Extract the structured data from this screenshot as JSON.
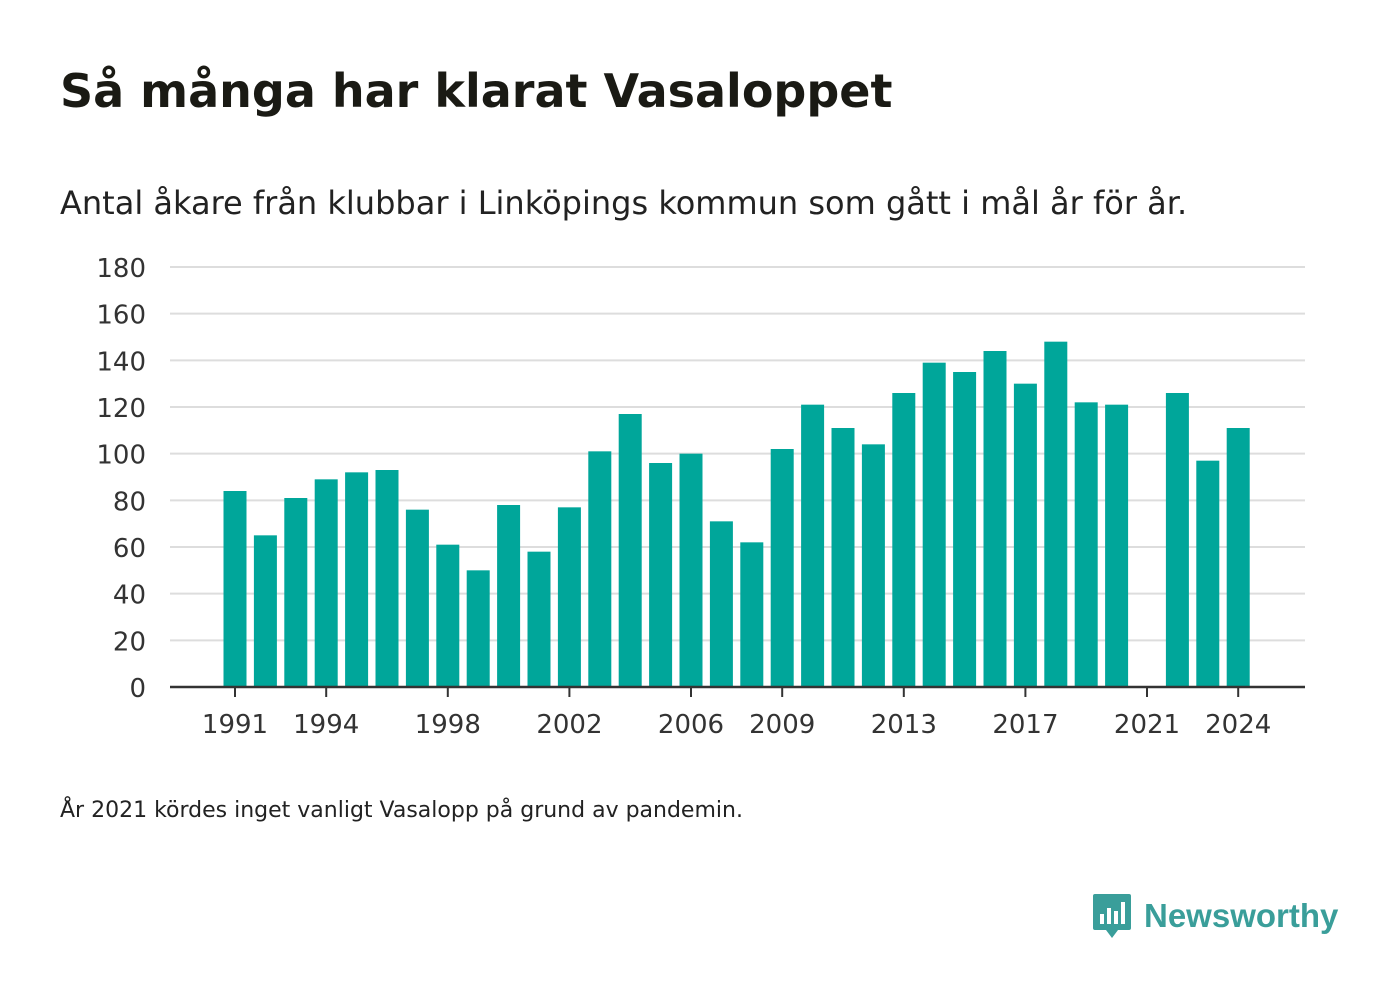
{
  "header": {
    "title": "Så många har klarat Vasaloppet",
    "subtitle": "Antal åkare från klubbar i Linköpings kommun som gått i mål år för år."
  },
  "footer": {
    "note": "År 2021 kördes inget vanligt Vasalopp på grund av pandemin.",
    "brand": "Newsworthy",
    "brand_icon": "bar-chart-speech-bubble-icon"
  },
  "colors": {
    "bar": "#00a69a",
    "grid": "#dddddd",
    "axis": "#333333",
    "brand": "#3a9e9a"
  },
  "chart_data": {
    "type": "bar",
    "title": "Så många har klarat Vasaloppet",
    "subtitle": "Antal åkare från klubbar i Linköpings kommun som gått i mål år för år.",
    "xlabel": "",
    "ylabel": "",
    "categories": [
      1991,
      1992,
      1993,
      1994,
      1995,
      1996,
      1997,
      1998,
      1999,
      2000,
      2001,
      2002,
      2003,
      2004,
      2005,
      2006,
      2007,
      2008,
      2009,
      2010,
      2011,
      2012,
      2013,
      2014,
      2015,
      2016,
      2017,
      2018,
      2019,
      2020,
      2021,
      2022,
      2023,
      2024
    ],
    "values": [
      84,
      65,
      81,
      89,
      92,
      93,
      76,
      61,
      50,
      78,
      58,
      77,
      101,
      117,
      96,
      100,
      71,
      62,
      102,
      121,
      111,
      104,
      126,
      139,
      135,
      144,
      130,
      148,
      122,
      121,
      null,
      126,
      97,
      111
    ],
    "x_tick_labels": [
      "1991",
      "1994",
      "1998",
      "2002",
      "2006",
      "2009",
      "2013",
      "2017",
      "2021",
      "2024"
    ],
    "y_ticks": [
      0,
      20,
      40,
      60,
      80,
      100,
      120,
      140,
      160,
      180
    ],
    "ylim": [
      0,
      180
    ],
    "grid": true,
    "legend": "none"
  }
}
